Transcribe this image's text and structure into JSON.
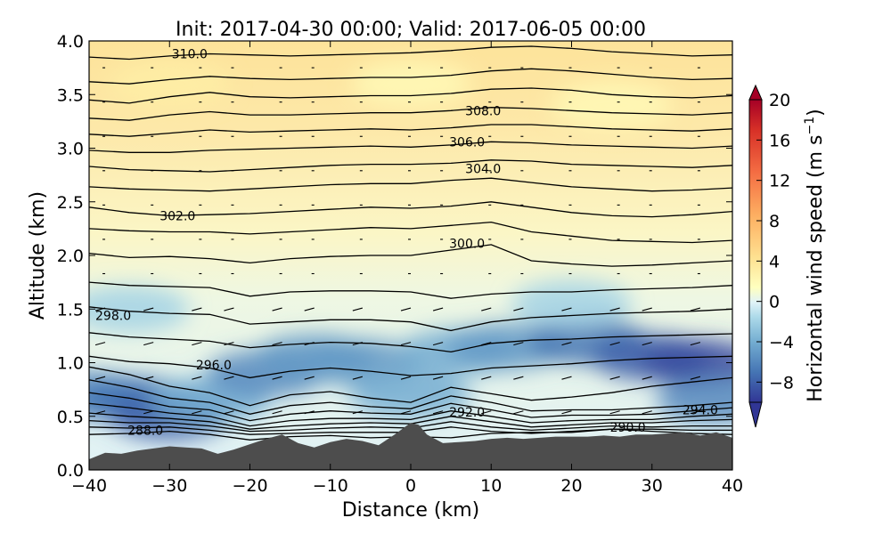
{
  "chart_data": {
    "type": "heatmap",
    "title": "Init: 2017-04-30 00:00; Valid: 2017-06-05 00:00",
    "xlabel": "Distance (km)",
    "ylabel": "Altitude (km)",
    "xlim": [
      -40,
      40
    ],
    "ylim": [
      0.0,
      4.0
    ],
    "x_ticks": [
      "−40",
      "−30",
      "−20",
      "−10",
      "0",
      "10",
      "20",
      "30",
      "40"
    ],
    "y_ticks": [
      "0.0",
      "0.5",
      "1.0",
      "1.5",
      "2.0",
      "2.5",
      "3.0",
      "3.5",
      "4.0"
    ],
    "grid": false,
    "colorbar": {
      "label": "Horizontal wind speed (m s",
      "label_sup": "−1",
      "label_end": ")",
      "ticks": [
        "20",
        "16",
        "12",
        "8",
        "4",
        "0",
        "−4",
        "−8"
      ],
      "range": [
        -10,
        20
      ],
      "colormap": "RdYlBu_r",
      "extend": "both"
    },
    "contour_labels": [
      {
        "text": "310.0",
        "x": -27.5,
        "y": 3.88
      },
      {
        "text": "308.0",
        "x": 9.0,
        "y": 3.35
      },
      {
        "text": "306.0",
        "x": 7.0,
        "y": 3.06
      },
      {
        "text": "304.0",
        "x": 9.0,
        "y": 2.81
      },
      {
        "text": "302.0",
        "x": -29.0,
        "y": 2.37
      },
      {
        "text": "300.0",
        "x": 7.0,
        "y": 2.11
      },
      {
        "text": "298.0",
        "x": -37.0,
        "y": 1.44
      },
      {
        "text": "296.0",
        "x": -24.5,
        "y": 0.98
      },
      {
        "text": "292.0",
        "x": 7.0,
        "y": 0.54
      },
      {
        "text": "294.0",
        "x": 36.0,
        "y": 0.56
      },
      {
        "text": "290.0",
        "x": 27.0,
        "y": 0.4
      },
      {
        "text": "288.0",
        "x": -33.0,
        "y": 0.37
      }
    ],
    "isentropes": [
      {
        "level": 288,
        "y": [
          0.33,
          0.34,
          0.36,
          0.33,
          0.28,
          0.31,
          0.32,
          0.3,
          0.31,
          0.3,
          0.34,
          0.35,
          0.35,
          0.38,
          0.36,
          0.34,
          0.33
        ]
      },
      {
        "level": 289,
        "y": [
          0.4,
          0.39,
          0.4,
          0.37,
          0.33,
          0.34,
          0.35,
          0.35,
          0.35,
          0.4,
          0.36,
          0.34,
          0.36,
          0.38,
          0.38,
          0.37,
          0.37
        ]
      },
      {
        "level": 290,
        "y": [
          0.46,
          0.44,
          0.44,
          0.41,
          0.36,
          0.37,
          0.39,
          0.4,
          0.39,
          0.45,
          0.4,
          0.37,
          0.39,
          0.41,
          0.4,
          0.41,
          0.41
        ]
      },
      {
        "level": 291,
        "y": [
          0.53,
          0.5,
          0.48,
          0.45,
          0.38,
          0.41,
          0.43,
          0.44,
          0.43,
          0.5,
          0.45,
          0.4,
          0.42,
          0.44,
          0.44,
          0.46,
          0.47
        ]
      },
      {
        "level": 292,
        "y": [
          0.62,
          0.58,
          0.53,
          0.5,
          0.41,
          0.46,
          0.48,
          0.48,
          0.47,
          0.55,
          0.5,
          0.44,
          0.46,
          0.47,
          0.47,
          0.5,
          0.52
        ]
      },
      {
        "level": 293,
        "y": [
          0.72,
          0.67,
          0.59,
          0.56,
          0.46,
          0.52,
          0.55,
          0.53,
          0.52,
          0.62,
          0.56,
          0.49,
          0.51,
          0.51,
          0.52,
          0.55,
          0.58
        ]
      },
      {
        "level": 294,
        "y": [
          0.84,
          0.77,
          0.67,
          0.63,
          0.52,
          0.6,
          0.63,
          0.59,
          0.57,
          0.69,
          0.63,
          0.55,
          0.56,
          0.56,
          0.58,
          0.6,
          0.63
        ]
      },
      {
        "level": 295,
        "y": [
          0.96,
          0.89,
          0.78,
          0.72,
          0.6,
          0.7,
          0.73,
          0.67,
          0.63,
          0.77,
          0.71,
          0.65,
          0.68,
          0.72,
          0.78,
          0.82,
          0.86
        ]
      },
      {
        "level": 296,
        "y": [
          1.06,
          1.01,
          0.99,
          0.95,
          0.86,
          0.92,
          0.95,
          0.92,
          0.88,
          0.9,
          0.95,
          0.97,
          0.99,
          1.02,
          1.04,
          1.05,
          1.06
        ]
      },
      {
        "level": 297,
        "y": [
          1.28,
          1.24,
          1.22,
          1.2,
          1.14,
          1.17,
          1.19,
          1.18,
          1.15,
          1.1,
          1.18,
          1.21,
          1.22,
          1.24,
          1.25,
          1.26,
          1.27
        ]
      },
      {
        "level": 298,
        "y": [
          1.52,
          1.48,
          1.46,
          1.45,
          1.36,
          1.38,
          1.4,
          1.4,
          1.38,
          1.3,
          1.38,
          1.42,
          1.44,
          1.46,
          1.47,
          1.48,
          1.5
        ]
      },
      {
        "level": 299,
        "y": [
          1.75,
          1.72,
          1.71,
          1.7,
          1.62,
          1.66,
          1.67,
          1.67,
          1.66,
          1.6,
          1.64,
          1.66,
          1.66,
          1.68,
          1.69,
          1.7,
          1.72
        ]
      },
      {
        "level": 300,
        "y": [
          2.02,
          1.98,
          1.99,
          1.97,
          1.93,
          1.97,
          1.99,
          2.0,
          2.0,
          2.05,
          2.1,
          1.95,
          1.92,
          1.9,
          1.91,
          1.93,
          1.95
        ]
      },
      {
        "level": 301,
        "y": [
          2.25,
          2.23,
          2.22,
          2.22,
          2.2,
          2.22,
          2.24,
          2.26,
          2.25,
          2.28,
          2.31,
          2.22,
          2.18,
          2.14,
          2.13,
          2.12,
          2.14
        ]
      },
      {
        "level": 302,
        "y": [
          2.45,
          2.4,
          2.37,
          2.38,
          2.39,
          2.41,
          2.43,
          2.45,
          2.44,
          2.46,
          2.5,
          2.45,
          2.4,
          2.37,
          2.36,
          2.38,
          2.41
        ]
      },
      {
        "level": 303,
        "y": [
          2.64,
          2.62,
          2.61,
          2.6,
          2.62,
          2.64,
          2.66,
          2.67,
          2.67,
          2.7,
          2.72,
          2.68,
          2.64,
          2.62,
          2.6,
          2.61,
          2.63
        ]
      },
      {
        "level": 304,
        "y": [
          2.83,
          2.8,
          2.79,
          2.78,
          2.8,
          2.82,
          2.84,
          2.85,
          2.85,
          2.86,
          2.89,
          2.88,
          2.85,
          2.84,
          2.83,
          2.82,
          2.84
        ]
      },
      {
        "level": 305,
        "y": [
          2.98,
          2.96,
          2.96,
          2.98,
          2.99,
          3.0,
          3.01,
          3.02,
          3.01,
          3.03,
          3.06,
          3.05,
          3.03,
          3.02,
          3.01,
          3.0,
          3.02
        ]
      },
      {
        "level": 306,
        "y": [
          3.13,
          3.11,
          3.14,
          3.17,
          3.15,
          3.16,
          3.17,
          3.18,
          3.17,
          3.19,
          3.22,
          3.22,
          3.2,
          3.18,
          3.17,
          3.16,
          3.18
        ]
      },
      {
        "level": 307,
        "y": [
          3.28,
          3.26,
          3.31,
          3.34,
          3.31,
          3.31,
          3.32,
          3.33,
          3.33,
          3.35,
          3.38,
          3.37,
          3.35,
          3.33,
          3.32,
          3.31,
          3.33
        ]
      },
      {
        "level": 308,
        "y": [
          3.45,
          3.42,
          3.48,
          3.52,
          3.48,
          3.47,
          3.48,
          3.49,
          3.49,
          3.51,
          3.55,
          3.56,
          3.54,
          3.5,
          3.48,
          3.47,
          3.49
        ]
      },
      {
        "level": 309,
        "y": [
          3.62,
          3.6,
          3.64,
          3.67,
          3.65,
          3.64,
          3.65,
          3.66,
          3.66,
          3.68,
          3.72,
          3.74,
          3.72,
          3.69,
          3.66,
          3.64,
          3.65
        ]
      },
      {
        "level": 310,
        "y": [
          3.85,
          3.83,
          3.86,
          3.88,
          3.87,
          3.86,
          3.87,
          3.88,
          3.89,
          3.91,
          3.94,
          3.95,
          3.93,
          3.9,
          3.88,
          3.86,
          3.87
        ]
      }
    ],
    "wind_speed_field": [
      {
        "x": -40,
        "y": 0.7,
        "value": -6
      },
      {
        "x": -34,
        "y": 0.65,
        "value": -7
      },
      {
        "x": -30,
        "y": 0.5,
        "value": -8
      },
      {
        "x": -25,
        "y": 0.65,
        "value": -4
      },
      {
        "x": -18,
        "y": 0.9,
        "value": -6
      },
      {
        "x": -12,
        "y": 1.05,
        "value": -5
      },
      {
        "x": -6,
        "y": 1.0,
        "value": -5
      },
      {
        "x": 0,
        "y": 0.7,
        "value": -4
      },
      {
        "x": 6,
        "y": 1.1,
        "value": -4
      },
      {
        "x": 12,
        "y": 1.15,
        "value": -5
      },
      {
        "x": 22,
        "y": 1.2,
        "value": -7
      },
      {
        "x": 30,
        "y": 1.05,
        "value": -8
      },
      {
        "x": 36,
        "y": 1.0,
        "value": -9
      },
      {
        "x": 38,
        "y": 0.65,
        "value": -6
      },
      {
        "x": -35,
        "y": 1.5,
        "value": -2
      },
      {
        "x": 20,
        "y": 1.55,
        "value": -2
      },
      {
        "x": -30,
        "y": 3.6,
        "value": 3
      },
      {
        "x": 0,
        "y": 3.6,
        "value": 2
      },
      {
        "x": 25,
        "y": 3.4,
        "value": 2
      }
    ],
    "terrain": {
      "x": [
        -40,
        -38,
        -36,
        -34,
        -32,
        -30,
        -28,
        -26,
        -24,
        -22,
        -20,
        -18,
        -16,
        -14,
        -12,
        -10,
        -8,
        -6,
        -4,
        -2,
        0,
        1,
        2,
        4,
        6,
        8,
        10,
        12,
        14,
        16,
        18,
        20,
        22,
        24,
        26,
        28,
        30,
        32,
        34,
        36,
        38,
        40
      ],
      "y": [
        0.1,
        0.16,
        0.15,
        0.18,
        0.2,
        0.22,
        0.21,
        0.2,
        0.15,
        0.19,
        0.24,
        0.29,
        0.33,
        0.25,
        0.21,
        0.26,
        0.29,
        0.27,
        0.23,
        0.33,
        0.44,
        0.42,
        0.33,
        0.25,
        0.26,
        0.27,
        0.29,
        0.3,
        0.29,
        0.3,
        0.31,
        0.31,
        0.31,
        0.32,
        0.31,
        0.33,
        0.33,
        0.34,
        0.35,
        0.32,
        0.35,
        0.3
      ]
    }
  }
}
